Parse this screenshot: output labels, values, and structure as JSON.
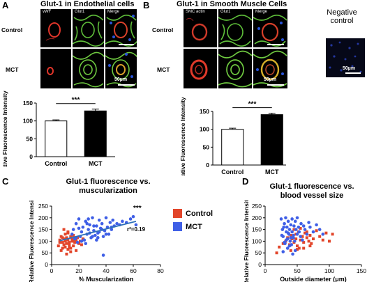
{
  "panelA": {
    "letter": "A",
    "title": "Glut-1 in Endothelial cells",
    "channels": [
      "vWF",
      "Glut1",
      "Merge"
    ],
    "rows": [
      "Control",
      "MCT"
    ],
    "scale": "50µm",
    "chart_data": {
      "type": "bar",
      "categories": [
        "Control",
        "MCT"
      ],
      "values": [
        100,
        128
      ],
      "errors": [
        3,
        5
      ],
      "bar_colors": [
        "#ffffff",
        "#000000"
      ],
      "ylabel": "Relative Fluorescence Intensity (%)",
      "ylim": [
        0,
        150
      ],
      "yticks": [
        0,
        50,
        100,
        150
      ],
      "significance": "***"
    }
  },
  "panelB": {
    "letter": "B",
    "title": "Glut-1 in Smooth Muscle Cells",
    "channels": [
      "SMC actin",
      "Glut1",
      "Merge"
    ],
    "rows": [
      "Control",
      "MCT"
    ],
    "scale": "50µm",
    "chart_data": {
      "type": "bar",
      "categories": [
        "Control",
        "MCT"
      ],
      "values": [
        100,
        141
      ],
      "errors": [
        3,
        4
      ],
      "bar_colors": [
        "#ffffff",
        "#000000"
      ],
      "ylabel": "Relative Fluorescence Intensity (%)",
      "ylim": [
        0,
        150
      ],
      "yticks": [
        0,
        50,
        100,
        150
      ],
      "significance": "***"
    }
  },
  "negative": {
    "label_line1": "Negative",
    "label_line2": "control",
    "scale": "50µm"
  },
  "legend": {
    "items": [
      {
        "label": "Control",
        "color": "#e2452a"
      },
      {
        "label": "MCT",
        "color": "#3f5fe6"
      }
    ]
  },
  "panelC": {
    "letter": "C",
    "title_line1": "Glut-1 fluorescence vs.",
    "title_line2": "muscularization",
    "significance": "***",
    "r2": "r²=0.19",
    "chart_data": {
      "type": "scatter",
      "xlabel": "% Muscularization",
      "ylabel": "Relative Fluorescence Intensity (%)",
      "xlim": [
        0,
        80
      ],
      "ylim": [
        0,
        250
      ],
      "xticks": [
        0,
        20,
        40,
        60,
        80
      ],
      "yticks": [
        0,
        50,
        100,
        150,
        200,
        250
      ],
      "trendline": {
        "x": [
          6,
          62
        ],
        "y": [
          102,
          185
        ]
      },
      "series": [
        {
          "name": "Control",
          "color": "#e2452a",
          "marker": "square",
          "x": [
            5,
            6,
            7,
            7,
            8,
            8,
            9,
            9,
            10,
            10,
            10,
            11,
            11,
            12,
            12,
            12,
            13,
            13,
            14,
            14,
            15,
            15,
            16,
            16,
            17,
            18,
            18,
            19,
            20,
            21,
            22,
            23,
            9,
            6,
            12,
            14,
            8,
            11,
            16,
            13
          ],
          "y": [
            80,
            105,
            60,
            120,
            95,
            70,
            110,
            85,
            130,
            75,
            100,
            90,
            115,
            65,
            105,
            140,
            85,
            95,
            120,
            70,
            100,
            110,
            80,
            125,
            95,
            105,
            60,
            115,
            90,
            100,
            85,
            110,
            150,
            95,
            135,
            55,
            115,
            45,
            100,
            75
          ]
        },
        {
          "name": "MCT",
          "color": "#3f5fe6",
          "marker": "circle",
          "x": [
            15,
            16,
            17,
            18,
            19,
            20,
            21,
            22,
            23,
            24,
            25,
            26,
            27,
            28,
            29,
            30,
            31,
            32,
            33,
            34,
            35,
            36,
            37,
            38,
            39,
            40,
            41,
            42,
            43,
            44,
            45,
            46,
            48,
            50,
            52,
            55,
            58,
            60,
            22,
            25,
            28,
            31,
            34,
            37,
            40,
            20,
            26,
            33,
            38,
            44,
            30,
            35,
            62,
            18,
            27
          ],
          "y": [
            130,
            150,
            110,
            175,
            95,
            195,
            120,
            140,
            160,
            105,
            185,
            130,
            150,
            170,
            115,
            200,
            145,
            125,
            165,
            135,
            190,
            155,
            175,
            120,
            145,
            200,
            160,
            130,
            180,
            150,
            190,
            165,
            175,
            170,
            185,
            180,
            195,
            205,
            100,
            90,
            135,
            165,
            115,
            150,
            130,
            155,
            175,
            105,
            40,
            160,
            120,
            140,
            170,
            115,
            195
          ]
        }
      ]
    }
  },
  "panelD": {
    "letter": "D",
    "title_line1": "Glut-1 fluorescence vs.",
    "title_line2": "blood vessel size",
    "chart_data": {
      "type": "scatter",
      "xlabel": "Outside diameter (μm)",
      "ylabel": "Relative Fluorescence Intensity (%)",
      "xlim": [
        0,
        150
      ],
      "ylim": [
        0,
        250
      ],
      "xticks": [
        0,
        50,
        100,
        150
      ],
      "yticks": [
        0,
        50,
        100,
        150,
        200,
        250
      ],
      "series": [
        {
          "name": "Control",
          "color": "#e2452a",
          "marker": "square",
          "x": [
            18,
            22,
            28,
            32,
            35,
            38,
            40,
            42,
            45,
            48,
            50,
            52,
            55,
            58,
            60,
            62,
            65,
            68,
            70,
            72,
            75,
            80,
            85,
            90,
            95,
            100,
            105,
            40,
            45,
            50,
            55,
            60,
            65,
            70,
            48,
            53,
            58
          ],
          "y": [
            50,
            75,
            90,
            100,
            115,
            85,
            125,
            110,
            95,
            130,
            80,
            140,
            105,
            120,
            70,
            135,
            115,
            100,
            125,
            90,
            110,
            145,
            120,
            105,
            135,
            100,
            130,
            60,
            150,
            65,
            155,
            95,
            140,
            80,
            110,
            70,
            120
          ]
        },
        {
          "name": "MCT",
          "color": "#3f5fe6",
          "marker": "circle",
          "x": [
            25,
            27,
            28,
            30,
            30,
            32,
            33,
            34,
            35,
            36,
            37,
            38,
            38,
            40,
            40,
            42,
            42,
            44,
            45,
            46,
            47,
            48,
            50,
            50,
            52,
            53,
            55,
            56,
            58,
            60,
            62,
            65,
            68,
            70,
            75,
            80,
            85,
            90,
            28,
            31,
            35,
            39,
            43,
            47,
            26,
            33,
            41,
            36,
            29,
            44
          ],
          "y": [
            195,
            150,
            120,
            175,
            95,
            200,
            140,
            160,
            110,
            185,
            130,
            150,
            80,
            170,
            115,
            195,
            140,
            125,
            165,
            100,
            185,
            150,
            200,
            130,
            160,
            140,
            120,
            175,
            105,
            165,
            150,
            130,
            180,
            160,
            140,
            170,
            150,
            130,
            55,
            90,
            70,
            100,
            45,
            60,
            125,
            105,
            85,
            135,
            160,
            115
          ]
        }
      ]
    }
  }
}
